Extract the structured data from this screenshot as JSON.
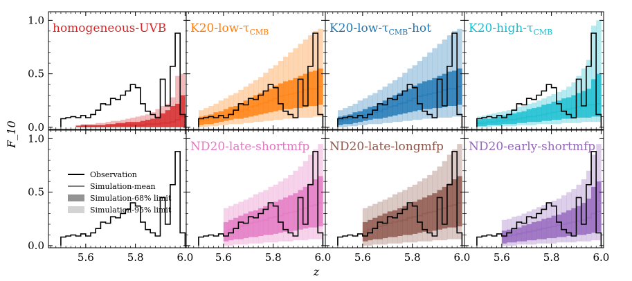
{
  "chart_data": {
    "type": "step-histogram-grid",
    "ylabel": "F_10",
    "xlabel": "z",
    "xlim": [
      5.45,
      6.01
    ],
    "ylim": [
      -0.02,
      1.08
    ],
    "xticks": [
      5.6,
      5.8,
      6.0
    ],
    "xtick_labels": [
      "5.6",
      "5.8",
      "6.0"
    ],
    "yticks": [
      0.0,
      0.5,
      1.0
    ],
    "ytick_labels": [
      "0.0",
      "0.5",
      "1.0"
    ],
    "legend": {
      "placement": "center-left of bottom-left panel",
      "entries": [
        "Observation",
        "Simulation-mean",
        "Simulation-68% limit",
        "Simulation-95% limit"
      ]
    },
    "observation": {
      "name": "Observation",
      "edges": [
        5.5,
        5.52,
        5.54,
        5.56,
        5.58,
        5.6,
        5.62,
        5.64,
        5.66,
        5.68,
        5.7,
        5.72,
        5.74,
        5.76,
        5.78,
        5.8,
        5.82,
        5.84,
        5.86,
        5.88,
        5.9,
        5.92,
        5.94,
        5.96,
        5.98,
        6.0
      ],
      "values": [
        0.08,
        0.09,
        0.1,
        0.09,
        0.11,
        0.09,
        0.12,
        0.16,
        0.22,
        0.21,
        0.27,
        0.26,
        0.3,
        0.34,
        0.4,
        0.37,
        0.22,
        0.15,
        0.12,
        0.09,
        0.45,
        0.2,
        0.57,
        0.88,
        0.12
      ]
    },
    "panels": [
      {
        "label": "homogeneous-UVB",
        "label_html": "homogeneous-UVB",
        "color": "#d62728",
        "x": [
          5.56,
          5.58,
          5.6,
          5.62,
          5.64,
          5.66,
          5.68,
          5.7,
          5.72,
          5.74,
          5.76,
          5.78,
          5.8,
          5.82,
          5.84,
          5.86,
          5.88,
          5.9,
          5.92,
          5.94,
          5.96,
          5.98
        ],
        "mean": [
          0.01,
          0.01,
          0.01,
          0.01,
          0.01,
          0.01,
          0.01,
          0.02,
          0.02,
          0.02,
          0.02,
          0.02,
          0.02,
          0.02,
          0.03,
          0.03,
          0.03,
          0.04,
          0.04,
          0.05,
          0.07,
          0.1
        ],
        "lo68": [
          0,
          0,
          0,
          0,
          0,
          0,
          0,
          0,
          0,
          0,
          0,
          0,
          0,
          0,
          0,
          0,
          0,
          0,
          0,
          0,
          0,
          0
        ],
        "hi68": [
          0.01,
          0.02,
          0.02,
          0.02,
          0.02,
          0.02,
          0.03,
          0.03,
          0.04,
          0.04,
          0.05,
          0.05,
          0.05,
          0.06,
          0.07,
          0.08,
          0.1,
          0.13,
          0.16,
          0.2,
          0.22,
          0.3
        ],
        "hi95": [
          0.02,
          0.03,
          0.03,
          0.03,
          0.04,
          0.04,
          0.05,
          0.06,
          0.06,
          0.07,
          0.08,
          0.09,
          0.1,
          0.11,
          0.12,
          0.14,
          0.17,
          0.2,
          0.22,
          0.28,
          0.48,
          0.5
        ]
      },
      {
        "label": "K20-low-τCMB",
        "label_html": "K20-low-τ<sub>CMB</sub>",
        "color": "#ff7f0e",
        "x": [
          5.5,
          5.52,
          5.54,
          5.56,
          5.58,
          5.6,
          5.62,
          5.64,
          5.66,
          5.68,
          5.7,
          5.72,
          5.74,
          5.76,
          5.78,
          5.8,
          5.82,
          5.84,
          5.86,
          5.88,
          5.9,
          5.92,
          5.94,
          5.96,
          5.98
        ],
        "mean": [
          0.06,
          0.07,
          0.08,
          0.09,
          0.1,
          0.11,
          0.13,
          0.14,
          0.15,
          0.17,
          0.19,
          0.2,
          0.22,
          0.23,
          0.25,
          0.27,
          0.29,
          0.3,
          0.31,
          0.32,
          0.33,
          0.35,
          0.36,
          0.36,
          0.38
        ],
        "lo68": [
          0.02,
          0.03,
          0.03,
          0.04,
          0.05,
          0.06,
          0.07,
          0.08,
          0.08,
          0.09,
          0.1,
          0.11,
          0.12,
          0.13,
          0.14,
          0.15,
          0.16,
          0.17,
          0.17,
          0.18,
          0.18,
          0.19,
          0.2,
          0.2,
          0.21
        ],
        "hi68": [
          0.1,
          0.11,
          0.12,
          0.14,
          0.15,
          0.17,
          0.19,
          0.2,
          0.22,
          0.25,
          0.27,
          0.3,
          0.32,
          0.34,
          0.36,
          0.39,
          0.41,
          0.43,
          0.44,
          0.46,
          0.48,
          0.5,
          0.52,
          0.53,
          0.55
        ],
        "lo95": [
          0.0,
          0.0,
          0.01,
          0.01,
          0.02,
          0.02,
          0.03,
          0.03,
          0.03,
          0.04,
          0.04,
          0.05,
          0.05,
          0.06,
          0.06,
          0.07,
          0.07,
          0.08,
          0.08,
          0.08,
          0.09,
          0.09,
          0.09,
          0.1,
          0.1
        ],
        "hi95": [
          0.16,
          0.18,
          0.2,
          0.22,
          0.25,
          0.27,
          0.3,
          0.32,
          0.35,
          0.38,
          0.41,
          0.44,
          0.47,
          0.51,
          0.55,
          0.58,
          0.62,
          0.66,
          0.7,
          0.74,
          0.78,
          0.82,
          0.86,
          0.9,
          0.92
        ]
      },
      {
        "label": "K20-low-τCMB-hot",
        "label_html": "K20-low-τ<sub>CMB</sub>-hot",
        "color": "#1f77b4",
        "x": [
          5.5,
          5.52,
          5.54,
          5.56,
          5.58,
          5.6,
          5.62,
          5.64,
          5.66,
          5.68,
          5.7,
          5.72,
          5.74,
          5.76,
          5.78,
          5.8,
          5.82,
          5.84,
          5.86,
          5.88,
          5.9,
          5.92,
          5.94,
          5.96,
          5.98
        ],
        "mean": [
          0.06,
          0.07,
          0.08,
          0.09,
          0.1,
          0.11,
          0.13,
          0.14,
          0.15,
          0.17,
          0.19,
          0.2,
          0.22,
          0.23,
          0.25,
          0.27,
          0.29,
          0.3,
          0.31,
          0.32,
          0.33,
          0.35,
          0.36,
          0.36,
          0.38
        ],
        "lo68": [
          0.02,
          0.03,
          0.03,
          0.04,
          0.05,
          0.06,
          0.07,
          0.08,
          0.08,
          0.09,
          0.1,
          0.11,
          0.12,
          0.13,
          0.14,
          0.15,
          0.16,
          0.17,
          0.17,
          0.18,
          0.18,
          0.19,
          0.2,
          0.2,
          0.21
        ],
        "hi68": [
          0.1,
          0.11,
          0.12,
          0.14,
          0.15,
          0.17,
          0.19,
          0.2,
          0.22,
          0.25,
          0.27,
          0.3,
          0.32,
          0.34,
          0.36,
          0.39,
          0.41,
          0.43,
          0.44,
          0.46,
          0.48,
          0.5,
          0.52,
          0.53,
          0.55
        ],
        "lo95": [
          0.0,
          0.0,
          0.01,
          0.01,
          0.02,
          0.02,
          0.03,
          0.03,
          0.03,
          0.04,
          0.04,
          0.05,
          0.05,
          0.06,
          0.06,
          0.07,
          0.07,
          0.08,
          0.08,
          0.08,
          0.09,
          0.09,
          0.09,
          0.1,
          0.1
        ],
        "hi95": [
          0.16,
          0.18,
          0.2,
          0.22,
          0.25,
          0.27,
          0.3,
          0.32,
          0.35,
          0.38,
          0.41,
          0.44,
          0.47,
          0.51,
          0.55,
          0.58,
          0.62,
          0.66,
          0.7,
          0.74,
          0.78,
          0.82,
          0.86,
          0.9,
          0.92
        ]
      },
      {
        "label": "K20-high-τCMB",
        "label_html": "K20-high-τ<sub>CMB</sub>",
        "color": "#17becf",
        "x": [
          5.5,
          5.52,
          5.54,
          5.56,
          5.58,
          5.6,
          5.62,
          5.64,
          5.66,
          5.68,
          5.7,
          5.72,
          5.74,
          5.76,
          5.78,
          5.8,
          5.82,
          5.84,
          5.86,
          5.88,
          5.9,
          5.92,
          5.94,
          5.96,
          5.98
        ],
        "mean": [
          0.04,
          0.04,
          0.05,
          0.05,
          0.06,
          0.06,
          0.07,
          0.07,
          0.08,
          0.09,
          0.1,
          0.1,
          0.11,
          0.12,
          0.13,
          0.14,
          0.15,
          0.16,
          0.17,
          0.18,
          0.19,
          0.2,
          0.21,
          0.21,
          0.22
        ],
        "lo68": [
          0.01,
          0.01,
          0.02,
          0.02,
          0.02,
          0.03,
          0.03,
          0.03,
          0.04,
          0.04,
          0.05,
          0.05,
          0.05,
          0.06,
          0.06,
          0.07,
          0.07,
          0.08,
          0.08,
          0.08,
          0.09,
          0.09,
          0.09,
          0.1,
          0.1
        ],
        "hi68": [
          0.07,
          0.08,
          0.08,
          0.09,
          0.1,
          0.11,
          0.12,
          0.13,
          0.14,
          0.15,
          0.17,
          0.18,
          0.19,
          0.21,
          0.22,
          0.24,
          0.25,
          0.27,
          0.28,
          0.3,
          0.32,
          0.34,
          0.36,
          0.45,
          0.5
        ],
        "lo95": [
          0.0,
          0.0,
          0.0,
          0.01,
          0.01,
          0.01,
          0.01,
          0.01,
          0.02,
          0.02,
          0.02,
          0.02,
          0.03,
          0.03,
          0.03,
          0.03,
          0.03,
          0.04,
          0.04,
          0.04,
          0.04,
          0.05,
          0.05,
          0.05,
          0.05
        ],
        "hi95": [
          0.1,
          0.11,
          0.12,
          0.13,
          0.14,
          0.15,
          0.16,
          0.17,
          0.19,
          0.2,
          0.22,
          0.23,
          0.25,
          0.27,
          0.29,
          0.31,
          0.33,
          0.35,
          0.38,
          0.42,
          0.48,
          0.55,
          0.63,
          0.95,
          1.0
        ]
      },
      {
        "label": "",
        "label_html": "",
        "color": "",
        "x": [],
        "mean": [],
        "lo68": [],
        "hi68": [],
        "lo95": [],
        "hi95": []
      },
      {
        "label": "ND20-late-shortmfp",
        "label_html": "ND20-late-shortmfp",
        "color": "#e377c2",
        "x": [
          5.6,
          5.62,
          5.64,
          5.66,
          5.68,
          5.7,
          5.72,
          5.74,
          5.76,
          5.78,
          5.8,
          5.82,
          5.84,
          5.86,
          5.88,
          5.9,
          5.92,
          5.94,
          5.96,
          5.98
        ],
        "mean": [
          0.13,
          0.15,
          0.17,
          0.18,
          0.19,
          0.21,
          0.22,
          0.23,
          0.24,
          0.26,
          0.27,
          0.28,
          0.3,
          0.31,
          0.32,
          0.34,
          0.35,
          0.37,
          0.38,
          0.4
        ],
        "lo68": [
          0.04,
          0.05,
          0.06,
          0.06,
          0.07,
          0.08,
          0.08,
          0.09,
          0.1,
          0.1,
          0.11,
          0.12,
          0.13,
          0.13,
          0.14,
          0.15,
          0.16,
          0.17,
          0.17,
          0.18
        ],
        "hi68": [
          0.22,
          0.24,
          0.26,
          0.28,
          0.3,
          0.32,
          0.33,
          0.35,
          0.37,
          0.39,
          0.41,
          0.43,
          0.45,
          0.47,
          0.49,
          0.52,
          0.55,
          0.58,
          0.62,
          0.65
        ],
        "lo95": [
          0.0,
          0.0,
          0.01,
          0.01,
          0.01,
          0.02,
          0.02,
          0.02,
          0.03,
          0.03,
          0.03,
          0.04,
          0.04,
          0.04,
          0.05,
          0.05,
          0.05,
          0.06,
          0.06,
          0.06
        ],
        "hi95": [
          0.35,
          0.37,
          0.39,
          0.41,
          0.43,
          0.45,
          0.48,
          0.5,
          0.52,
          0.55,
          0.57,
          0.6,
          0.63,
          0.66,
          0.7,
          0.74,
          0.79,
          0.85,
          0.9,
          0.95
        ]
      },
      {
        "label": "ND20-late-longmfp",
        "label_html": "ND20-late-longmfp",
        "color": "#8c564b",
        "x": [
          5.6,
          5.62,
          5.64,
          5.66,
          5.68,
          5.7,
          5.72,
          5.74,
          5.76,
          5.78,
          5.8,
          5.82,
          5.84,
          5.86,
          5.88,
          5.9,
          5.92,
          5.94,
          5.96,
          5.98
        ],
        "mean": [
          0.13,
          0.15,
          0.17,
          0.18,
          0.19,
          0.21,
          0.22,
          0.23,
          0.24,
          0.26,
          0.27,
          0.28,
          0.3,
          0.31,
          0.32,
          0.34,
          0.35,
          0.37,
          0.38,
          0.4
        ],
        "lo68": [
          0.04,
          0.05,
          0.06,
          0.06,
          0.07,
          0.08,
          0.08,
          0.09,
          0.1,
          0.1,
          0.11,
          0.12,
          0.13,
          0.13,
          0.14,
          0.15,
          0.16,
          0.17,
          0.17,
          0.18
        ],
        "hi68": [
          0.22,
          0.24,
          0.26,
          0.28,
          0.3,
          0.32,
          0.33,
          0.35,
          0.37,
          0.39,
          0.41,
          0.43,
          0.45,
          0.47,
          0.49,
          0.52,
          0.55,
          0.58,
          0.62,
          0.65
        ],
        "lo95": [
          0.0,
          0.0,
          0.01,
          0.01,
          0.01,
          0.02,
          0.02,
          0.02,
          0.03,
          0.03,
          0.03,
          0.04,
          0.04,
          0.04,
          0.05,
          0.05,
          0.05,
          0.06,
          0.06,
          0.06
        ],
        "hi95": [
          0.35,
          0.37,
          0.39,
          0.41,
          0.43,
          0.45,
          0.48,
          0.5,
          0.52,
          0.55,
          0.57,
          0.6,
          0.63,
          0.66,
          0.7,
          0.74,
          0.79,
          0.85,
          0.9,
          0.95
        ]
      },
      {
        "label": "ND20-early-shortmfp",
        "label_html": "ND20-early-shortmfp",
        "color": "#9467bd",
        "x": [
          5.6,
          5.62,
          5.64,
          5.66,
          5.68,
          5.7,
          5.72,
          5.74,
          5.76,
          5.78,
          5.8,
          5.82,
          5.84,
          5.86,
          5.88,
          5.9,
          5.92,
          5.94,
          5.96,
          5.98
        ],
        "mean": [
          0.08,
          0.09,
          0.1,
          0.11,
          0.12,
          0.13,
          0.14,
          0.15,
          0.16,
          0.17,
          0.18,
          0.19,
          0.2,
          0.21,
          0.22,
          0.23,
          0.24,
          0.26,
          0.3,
          0.32
        ],
        "lo68": [
          0.02,
          0.03,
          0.03,
          0.04,
          0.04,
          0.05,
          0.05,
          0.06,
          0.06,
          0.07,
          0.07,
          0.08,
          0.08,
          0.09,
          0.09,
          0.1,
          0.1,
          0.11,
          0.12,
          0.13
        ],
        "hi68": [
          0.14,
          0.15,
          0.16,
          0.17,
          0.19,
          0.2,
          0.22,
          0.23,
          0.25,
          0.26,
          0.28,
          0.29,
          0.31,
          0.33,
          0.35,
          0.37,
          0.4,
          0.44,
          0.55,
          0.6
        ],
        "lo95": [
          0.0,
          0.0,
          0.0,
          0.01,
          0.01,
          0.01,
          0.01,
          0.02,
          0.02,
          0.02,
          0.02,
          0.03,
          0.03,
          0.03,
          0.03,
          0.04,
          0.04,
          0.04,
          0.05,
          0.05
        ],
        "hi95": [
          0.24,
          0.25,
          0.27,
          0.28,
          0.3,
          0.32,
          0.34,
          0.36,
          0.38,
          0.4,
          0.42,
          0.44,
          0.47,
          0.5,
          0.53,
          0.57,
          0.62,
          0.7,
          0.85,
          0.95
        ]
      }
    ]
  }
}
